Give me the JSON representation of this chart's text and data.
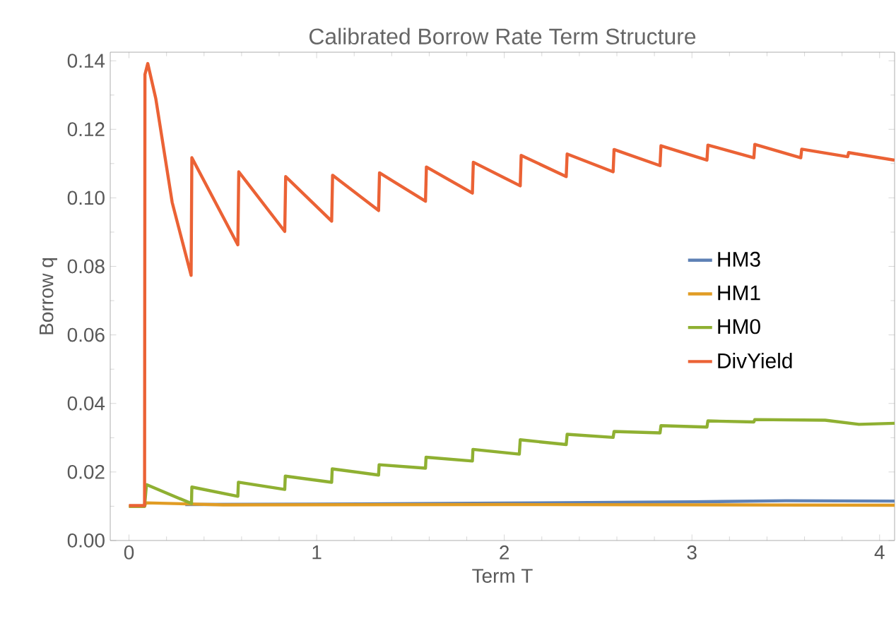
{
  "chart_data": {
    "type": "line",
    "title": "Calibrated Borrow Rate Term Structure",
    "xlabel": "Term T",
    "ylabel": "Borrow q",
    "xlim": [
      -0.1,
      4.08
    ],
    "ylim": [
      0,
      0.1425
    ],
    "xticks": [
      0,
      1,
      2,
      3,
      4
    ],
    "yticks": [
      {
        "value": 0,
        "label": "0.00"
      },
      {
        "value": 0.02,
        "label": "0.02"
      },
      {
        "value": 0.04,
        "label": "0.04"
      },
      {
        "value": 0.06,
        "label": "0.06"
      },
      {
        "value": 0.08,
        "label": "0.08"
      },
      {
        "value": 0.1,
        "label": "0.10"
      },
      {
        "value": 0.12,
        "label": "0.12"
      },
      {
        "value": 0.14,
        "label": "0.14"
      }
    ],
    "legend": "right",
    "line_style": "solid",
    "series": [
      {
        "name": "HM3",
        "color": "#5e81b5",
        "x": [
          0.3,
          1.0,
          2.0,
          3.0,
          3.5,
          4.08
        ],
        "values": [
          0.0105,
          0.0106,
          0.0109,
          0.0113,
          0.0116,
          0.0115
        ]
      },
      {
        "name": "HM1",
        "color": "#e19c24",
        "x": [
          0,
          0.083,
          0.09,
          0.5,
          2.0,
          4.08
        ],
        "values": [
          0.01,
          0.01,
          0.011,
          0.0104,
          0.0105,
          0.0103
        ]
      },
      {
        "name": "HM0",
        "color": "#8fb032",
        "x": [
          0,
          0.083,
          0.093,
          0.333,
          0.335,
          0.58,
          0.583,
          0.83,
          0.833,
          1.08,
          1.083,
          1.33,
          1.333,
          1.58,
          1.583,
          1.83,
          1.833,
          2.08,
          2.085,
          2.33,
          2.335,
          2.58,
          2.585,
          2.83,
          2.835,
          3.08,
          3.085,
          3.33,
          3.335,
          3.71,
          3.89,
          4.08
        ],
        "values": [
          0.01,
          0.01,
          0.0163,
          0.0108,
          0.0156,
          0.0129,
          0.017,
          0.0149,
          0.0188,
          0.017,
          0.0209,
          0.0191,
          0.0221,
          0.0211,
          0.0243,
          0.0232,
          0.0266,
          0.0252,
          0.0294,
          0.028,
          0.031,
          0.0301,
          0.0318,
          0.0314,
          0.0335,
          0.0331,
          0.0349,
          0.0346,
          0.0353,
          0.0351,
          0.0339,
          0.0342
        ]
      },
      {
        "name": "DivYield",
        "color": "#eb6235",
        "x": [
          0,
          0.083,
          0.085,
          0.1,
          0.143,
          0.23,
          0.331,
          0.335,
          0.58,
          0.585,
          0.83,
          0.835,
          1.08,
          1.085,
          1.33,
          1.335,
          1.58,
          1.585,
          1.83,
          1.835,
          2.085,
          2.09,
          2.33,
          2.335,
          2.58,
          2.585,
          2.83,
          2.835,
          3.08,
          3.085,
          3.33,
          3.335,
          3.58,
          3.585,
          3.83,
          3.835,
          4.08
        ],
        "values": [
          0.0102,
          0.0102,
          0.136,
          0.1392,
          0.1289,
          0.0987,
          0.0774,
          0.1117,
          0.0863,
          0.1076,
          0.0902,
          0.1062,
          0.0932,
          0.1066,
          0.0963,
          0.1073,
          0.099,
          0.109,
          0.1014,
          0.1104,
          0.1035,
          0.1124,
          0.1062,
          0.1128,
          0.1076,
          0.1141,
          0.1094,
          0.1152,
          0.111,
          0.1154,
          0.1117,
          0.1156,
          0.1117,
          0.1142,
          0.112,
          0.1132,
          0.111
        ]
      }
    ]
  }
}
